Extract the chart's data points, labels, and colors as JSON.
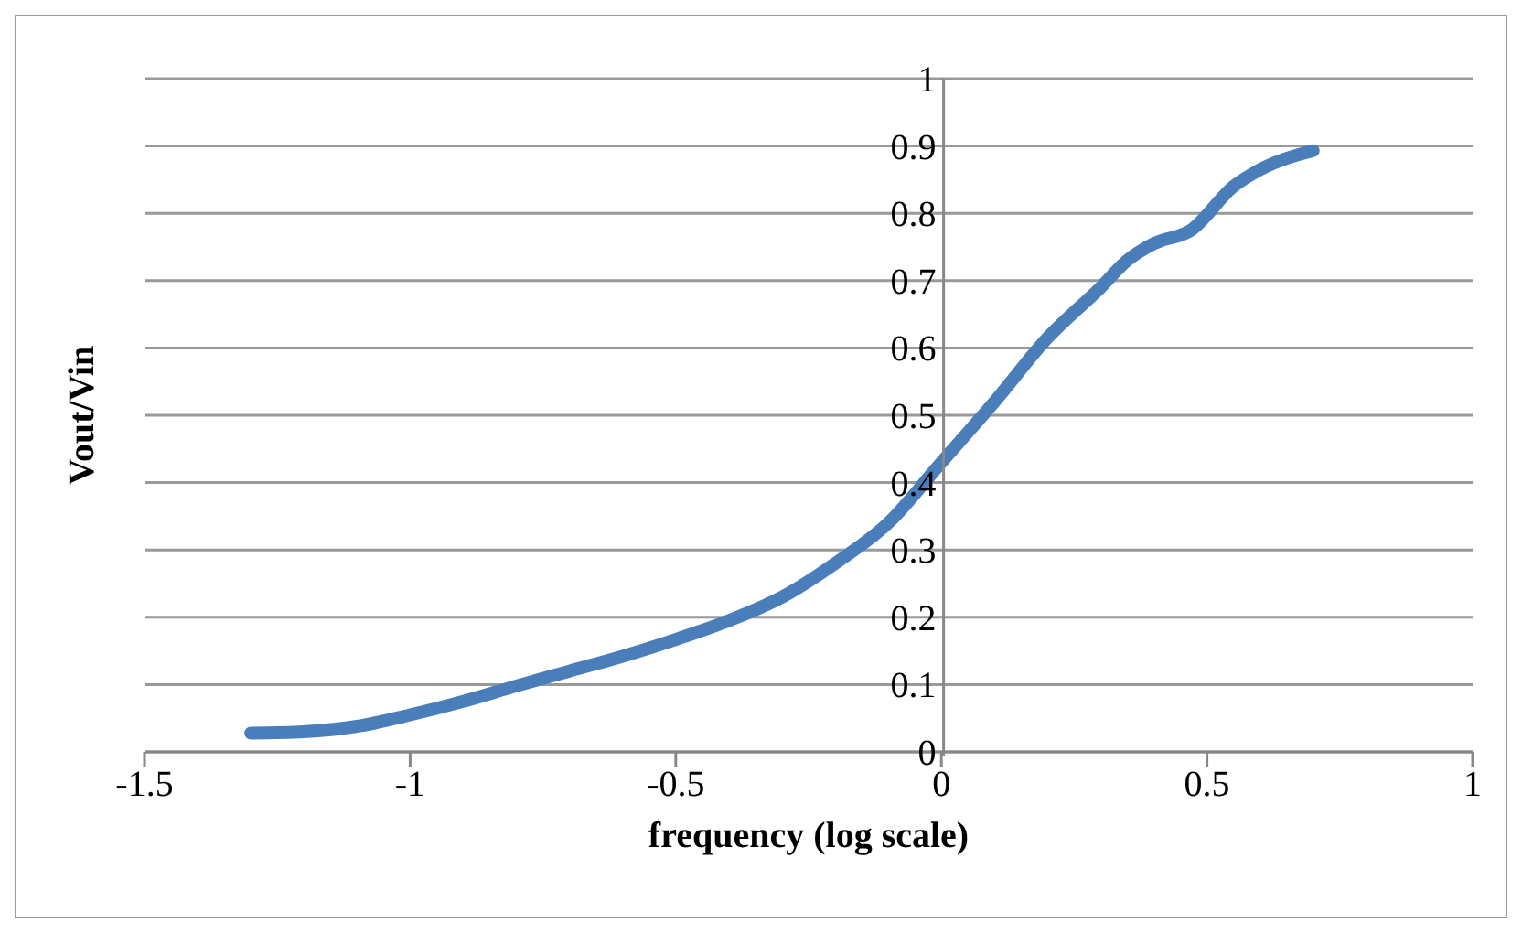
{
  "chart_data": {
    "type": "line",
    "xlabel": "frequency (log scale)",
    "ylabel": "Vout/Vin",
    "x": [
      -1.3,
      -1.2,
      -1.1,
      -1.0,
      -0.9,
      -0.8,
      -0.7,
      -0.6,
      -0.5,
      -0.4,
      -0.3,
      -0.2,
      -0.1,
      0,
      0.1,
      0.2,
      0.3,
      0.35,
      0.4,
      0.47,
      0.55,
      0.6,
      0.7
    ],
    "series": [
      {
        "color": "#4a7ebb",
        "values": [
          0.028,
          0.03,
          0.038,
          0.055,
          0.075,
          0.098,
          0.12,
          0.142,
          0.167,
          0.195,
          0.23,
          0.28,
          0.34,
          0.43,
          0.52,
          0.615,
          0.69,
          0.73,
          0.755,
          0.775,
          0.84,
          0.865,
          0.893
        ]
      }
    ],
    "xlim": [
      -1.5,
      1
    ],
    "xticks": [
      -1.5,
      -1,
      -0.5,
      0,
      0.5,
      1
    ],
    "ylim": [
      0,
      1
    ],
    "yticks": [
      0,
      0.1,
      0.2,
      0.3,
      0.4,
      0.5,
      0.6,
      0.7,
      0.8,
      0.9,
      1
    ],
    "grid": "y",
    "marker": "none",
    "line_style": "solid"
  }
}
